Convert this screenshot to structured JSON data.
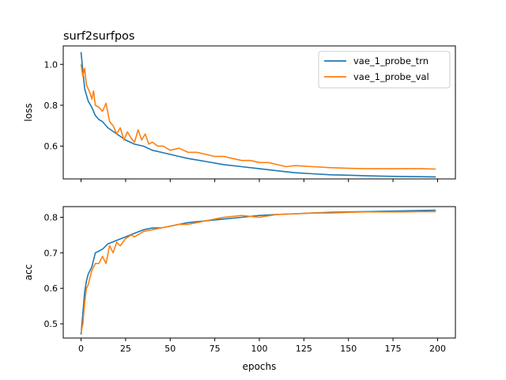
{
  "figure": {
    "title": "surf2surfpos"
  },
  "colors": {
    "trn": "#1f77b4",
    "val": "#ff7f0e",
    "axes": "#000000",
    "background": "#ffffff",
    "legend_border": "#cccccc"
  },
  "chart_data": [
    {
      "type": "line",
      "title": "surf2surfpos",
      "xlabel": "",
      "ylabel": "loss",
      "xlim": [
        -10,
        210
      ],
      "ylim": [
        0.44,
        1.09
      ],
      "xticks": [
        0,
        25,
        50,
        75,
        100,
        125,
        150,
        175,
        200
      ],
      "xtick_labels_visible": false,
      "yticks": [
        0.6,
        0.8,
        1.0
      ],
      "ytick_labels": [
        "0.6",
        "0.8",
        "1.0"
      ],
      "grid": false,
      "legend": {
        "placement": "top-right",
        "entries": [
          "vae_1_probe_trn",
          "vae_1_probe_val"
        ]
      },
      "series": [
        {
          "name": "vae_1_probe_trn",
          "color": "#1f77b4",
          "x": [
            0,
            2,
            4,
            6,
            8,
            10,
            12,
            15,
            20,
            25,
            30,
            35,
            40,
            45,
            50,
            55,
            60,
            70,
            80,
            90,
            100,
            110,
            120,
            130,
            140,
            150,
            160,
            170,
            180,
            190,
            199
          ],
          "y": [
            1.06,
            0.88,
            0.82,
            0.79,
            0.75,
            0.73,
            0.72,
            0.69,
            0.66,
            0.63,
            0.61,
            0.6,
            0.58,
            0.57,
            0.56,
            0.55,
            0.54,
            0.525,
            0.51,
            0.5,
            0.49,
            0.48,
            0.47,
            0.465,
            0.46,
            0.458,
            0.455,
            0.453,
            0.452,
            0.451,
            0.45
          ]
        },
        {
          "name": "vae_1_probe_val",
          "color": "#ff7f0e",
          "x": [
            0,
            1,
            2,
            3,
            4,
            5,
            6,
            7,
            8,
            10,
            12,
            14,
            16,
            18,
            20,
            22,
            24,
            26,
            28,
            30,
            32,
            34,
            36,
            38,
            40,
            43,
            46,
            50,
            55,
            60,
            65,
            70,
            75,
            80,
            85,
            90,
            95,
            100,
            105,
            110,
            115,
            120,
            130,
            140,
            150,
            160,
            170,
            180,
            190,
            199
          ],
          "y": [
            1.0,
            0.94,
            0.98,
            0.9,
            0.88,
            0.86,
            0.83,
            0.87,
            0.8,
            0.79,
            0.77,
            0.81,
            0.72,
            0.7,
            0.66,
            0.69,
            0.63,
            0.67,
            0.64,
            0.62,
            0.68,
            0.63,
            0.66,
            0.61,
            0.62,
            0.6,
            0.6,
            0.58,
            0.59,
            0.57,
            0.57,
            0.56,
            0.55,
            0.55,
            0.54,
            0.53,
            0.53,
            0.52,
            0.52,
            0.51,
            0.5,
            0.505,
            0.5,
            0.495,
            0.492,
            0.49,
            0.49,
            0.49,
            0.49,
            0.488
          ]
        }
      ]
    },
    {
      "type": "line",
      "title": "",
      "xlabel": "epochs",
      "ylabel": "acc",
      "xlim": [
        -10,
        210
      ],
      "ylim": [
        0.46,
        0.83
      ],
      "xticks": [
        0,
        25,
        50,
        75,
        100,
        125,
        150,
        175,
        200
      ],
      "xtick_labels": [
        "0",
        "25",
        "50",
        "75",
        "100",
        "125",
        "150",
        "175",
        "200"
      ],
      "xtick_labels_visible": true,
      "yticks": [
        0.5,
        0.6,
        0.7,
        0.8
      ],
      "ytick_labels": [
        "0.5",
        "0.6",
        "0.7",
        "0.8"
      ],
      "grid": false,
      "series": [
        {
          "name": "vae_1_probe_trn",
          "color": "#1f77b4",
          "x": [
            0,
            1,
            2,
            3,
            4,
            5,
            6,
            8,
            10,
            12,
            15,
            20,
            25,
            30,
            35,
            40,
            45,
            50,
            55,
            60,
            70,
            80,
            90,
            100,
            110,
            120,
            130,
            140,
            150,
            160,
            170,
            180,
            190,
            199
          ],
          "y": [
            0.47,
            0.53,
            0.59,
            0.62,
            0.64,
            0.65,
            0.66,
            0.7,
            0.705,
            0.71,
            0.725,
            0.735,
            0.745,
            0.755,
            0.765,
            0.77,
            0.77,
            0.775,
            0.78,
            0.785,
            0.79,
            0.795,
            0.8,
            0.805,
            0.808,
            0.81,
            0.812,
            0.814,
            0.815,
            0.816,
            0.817,
            0.818,
            0.819,
            0.82
          ]
        },
        {
          "name": "vae_1_probe_val",
          "color": "#ff7f0e",
          "x": [
            0,
            1,
            2,
            3,
            4,
            5,
            6,
            8,
            10,
            12,
            14,
            16,
            18,
            20,
            22,
            25,
            28,
            30,
            35,
            40,
            45,
            50,
            55,
            60,
            65,
            70,
            75,
            80,
            90,
            100,
            110,
            120,
            130,
            140,
            150,
            160,
            170,
            180,
            190,
            199
          ],
          "y": [
            0.475,
            0.5,
            0.56,
            0.6,
            0.61,
            0.63,
            0.65,
            0.67,
            0.67,
            0.69,
            0.67,
            0.72,
            0.7,
            0.73,
            0.72,
            0.74,
            0.75,
            0.745,
            0.76,
            0.765,
            0.77,
            0.775,
            0.78,
            0.78,
            0.785,
            0.79,
            0.795,
            0.8,
            0.805,
            0.8,
            0.808,
            0.81,
            0.812,
            0.812,
            0.814,
            0.815,
            0.815,
            0.815,
            0.816,
            0.816
          ]
        }
      ]
    }
  ]
}
